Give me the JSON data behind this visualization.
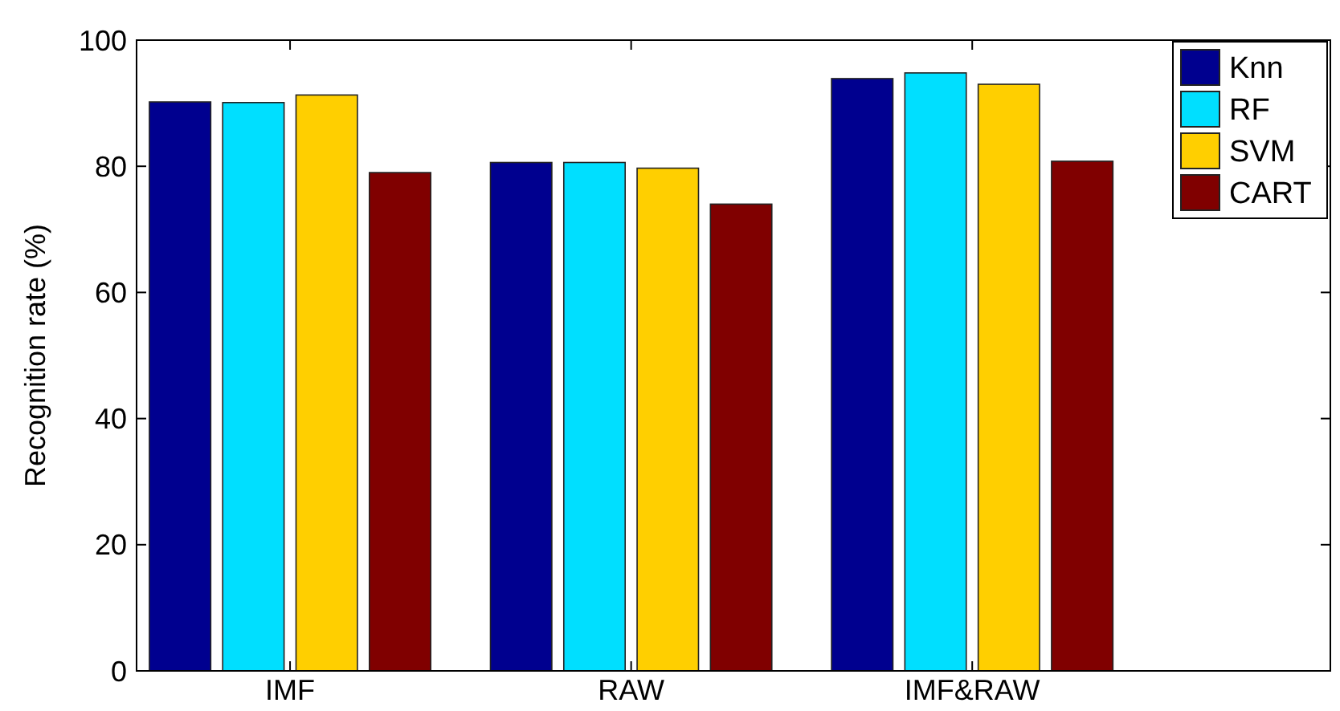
{
  "chart_data": {
    "type": "bar",
    "ylabel": "Recognition rate (%)",
    "categories": [
      "IMF",
      "RAW",
      "IMF&RAW"
    ],
    "series": [
      {
        "name": "Knn",
        "color": "#00008f",
        "values": [
          90.2,
          80.6,
          93.9
        ]
      },
      {
        "name": "RF",
        "color": "#00dfff",
        "values": [
          90.1,
          80.6,
          94.8
        ]
      },
      {
        "name": "SVM",
        "color": "#ffcf00",
        "values": [
          91.3,
          79.7,
          93.0
        ]
      },
      {
        "name": "CART",
        "color": "#800000",
        "values": [
          79.0,
          74.0,
          80.8
        ]
      }
    ],
    "ylim": [
      0,
      100
    ],
    "yticks": [
      0,
      20,
      40,
      60,
      80,
      100
    ],
    "grid": false,
    "legend": "top right"
  }
}
